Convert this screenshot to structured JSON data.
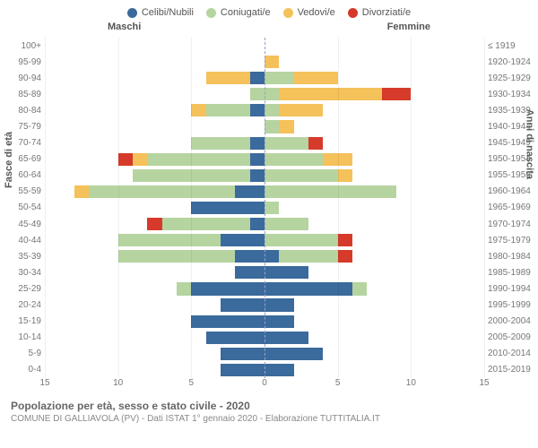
{
  "chart": {
    "type": "population-pyramid",
    "legend": [
      {
        "label": "Celibi/Nubili",
        "color": "#3b6a9c"
      },
      {
        "label": "Coniugati/e",
        "color": "#b6d4a0"
      },
      {
        "label": "Vedovi/e",
        "color": "#f4c15a"
      },
      {
        "label": "Divorziati/e",
        "color": "#d63a2a"
      }
    ],
    "header_male": "Maschi",
    "header_female": "Femmine",
    "y_left_axis_label": "Fasce di età",
    "y_right_axis_label": "Anni di nascita",
    "xlim": 15,
    "x_ticks": [
      15,
      10,
      5,
      0,
      5,
      10,
      15
    ],
    "background": "#ffffff",
    "grid_color": "rgba(0,0,0,0.06)",
    "centerline_color": "#9aa0c4",
    "rows": [
      {
        "age": "100+",
        "year": "≤ 1919",
        "m": [
          0,
          0,
          0,
          0
        ],
        "f": [
          0,
          0,
          0,
          0
        ]
      },
      {
        "age": "95-99",
        "year": "1920-1924",
        "m": [
          0,
          0,
          0,
          0
        ],
        "f": [
          0,
          0,
          1,
          0
        ]
      },
      {
        "age": "90-94",
        "year": "1925-1929",
        "m": [
          1,
          0,
          3,
          0
        ],
        "f": [
          0,
          2,
          3,
          0
        ]
      },
      {
        "age": "85-89",
        "year": "1930-1934",
        "m": [
          0,
          1,
          0,
          0
        ],
        "f": [
          0,
          1,
          7,
          2
        ]
      },
      {
        "age": "80-84",
        "year": "1935-1939",
        "m": [
          1,
          3,
          1,
          0
        ],
        "f": [
          0,
          1,
          3,
          0
        ]
      },
      {
        "age": "75-79",
        "year": "1940-1944",
        "m": [
          0,
          0,
          0,
          0
        ],
        "f": [
          0,
          1,
          1,
          0
        ]
      },
      {
        "age": "70-74",
        "year": "1945-1949",
        "m": [
          1,
          4,
          0,
          0
        ],
        "f": [
          0,
          3,
          0,
          1
        ]
      },
      {
        "age": "65-69",
        "year": "1950-1954",
        "m": [
          1,
          7,
          1,
          1
        ],
        "f": [
          0,
          4,
          2,
          0
        ]
      },
      {
        "age": "60-64",
        "year": "1955-1959",
        "m": [
          1,
          8,
          0,
          0
        ],
        "f": [
          0,
          5,
          1,
          0
        ]
      },
      {
        "age": "55-59",
        "year": "1960-1964",
        "m": [
          2,
          10,
          1,
          0
        ],
        "f": [
          0,
          9,
          0,
          0
        ]
      },
      {
        "age": "50-54",
        "year": "1965-1969",
        "m": [
          5,
          0,
          0,
          0
        ],
        "f": [
          0,
          1,
          0,
          0
        ]
      },
      {
        "age": "45-49",
        "year": "1970-1974",
        "m": [
          1,
          6,
          0,
          1
        ],
        "f": [
          0,
          3,
          0,
          0
        ]
      },
      {
        "age": "40-44",
        "year": "1975-1979",
        "m": [
          3,
          7,
          0,
          0
        ],
        "f": [
          0,
          5,
          0,
          1
        ]
      },
      {
        "age": "35-39",
        "year": "1980-1984",
        "m": [
          2,
          8,
          0,
          0
        ],
        "f": [
          1,
          4,
          0,
          1
        ]
      },
      {
        "age": "30-34",
        "year": "1985-1989",
        "m": [
          2,
          0,
          0,
          0
        ],
        "f": [
          3,
          0,
          0,
          0
        ]
      },
      {
        "age": "25-29",
        "year": "1990-1994",
        "m": [
          5,
          1,
          0,
          0
        ],
        "f": [
          6,
          1,
          0,
          0
        ]
      },
      {
        "age": "20-24",
        "year": "1995-1999",
        "m": [
          3,
          0,
          0,
          0
        ],
        "f": [
          2,
          0,
          0,
          0
        ]
      },
      {
        "age": "15-19",
        "year": "2000-2004",
        "m": [
          5,
          0,
          0,
          0
        ],
        "f": [
          2,
          0,
          0,
          0
        ]
      },
      {
        "age": "10-14",
        "year": "2005-2009",
        "m": [
          4,
          0,
          0,
          0
        ],
        "f": [
          3,
          0,
          0,
          0
        ]
      },
      {
        "age": "5-9",
        "year": "2010-2014",
        "m": [
          3,
          0,
          0,
          0
        ],
        "f": [
          4,
          0,
          0,
          0
        ]
      },
      {
        "age": "0-4",
        "year": "2015-2019",
        "m": [
          3,
          0,
          0,
          0
        ],
        "f": [
          2,
          0,
          0,
          0
        ]
      }
    ]
  },
  "footer": {
    "title": "Popolazione per età, sesso e stato civile - 2020",
    "subtitle": "COMUNE DI GALLIAVOLA (PV) - Dati ISTAT 1° gennaio 2020 - Elaborazione TUTTITALIA.IT"
  }
}
